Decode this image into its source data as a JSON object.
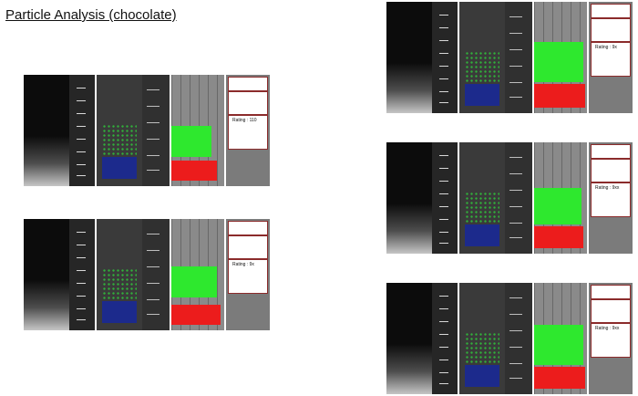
{
  "page": {
    "title": "Particle Analysis (chocolate)"
  },
  "panels": [
    {
      "id": "left-1",
      "rating": "Rating : 110"
    },
    {
      "id": "left-2",
      "rating": "Rating : 9x"
    },
    {
      "id": "right-1",
      "rating": "Rating : 9x"
    },
    {
      "id": "right-2",
      "rating": "Rating : 9xx"
    },
    {
      "id": "right-3",
      "rating": "Rating : 9xx"
    }
  ]
}
